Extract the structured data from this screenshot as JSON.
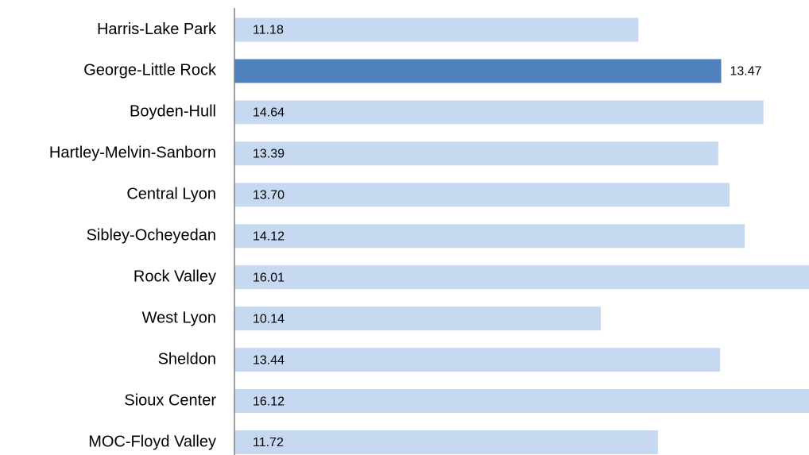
{
  "chart_data": {
    "type": "barh",
    "categories": [
      "Harris-Lake Park",
      "George-Little Rock",
      "Boyden-Hull",
      "Hartley-Melvin-Sanborn",
      "Central Lyon",
      "Sibley-Ocheyedan",
      "Rock Valley",
      "West Lyon",
      "Sheldon",
      "Sioux Center",
      "MOC-Floyd Valley"
    ],
    "values": [
      11.18,
      13.47,
      14.64,
      13.39,
      13.7,
      14.12,
      16.01,
      10.14,
      13.44,
      16.12,
      11.72
    ],
    "value_labels": [
      "11.18",
      "13.47",
      "14.64",
      "13.39",
      "13.70",
      "14.12",
      "16.01",
      "10.14",
      "13.44",
      "16.12",
      "11.72"
    ],
    "color": "#c6d9f1",
    "highlight": "George-Little Rock",
    "highlight_color": "#4f81bd",
    "xlim": [
      0,
      15.9
    ]
  }
}
